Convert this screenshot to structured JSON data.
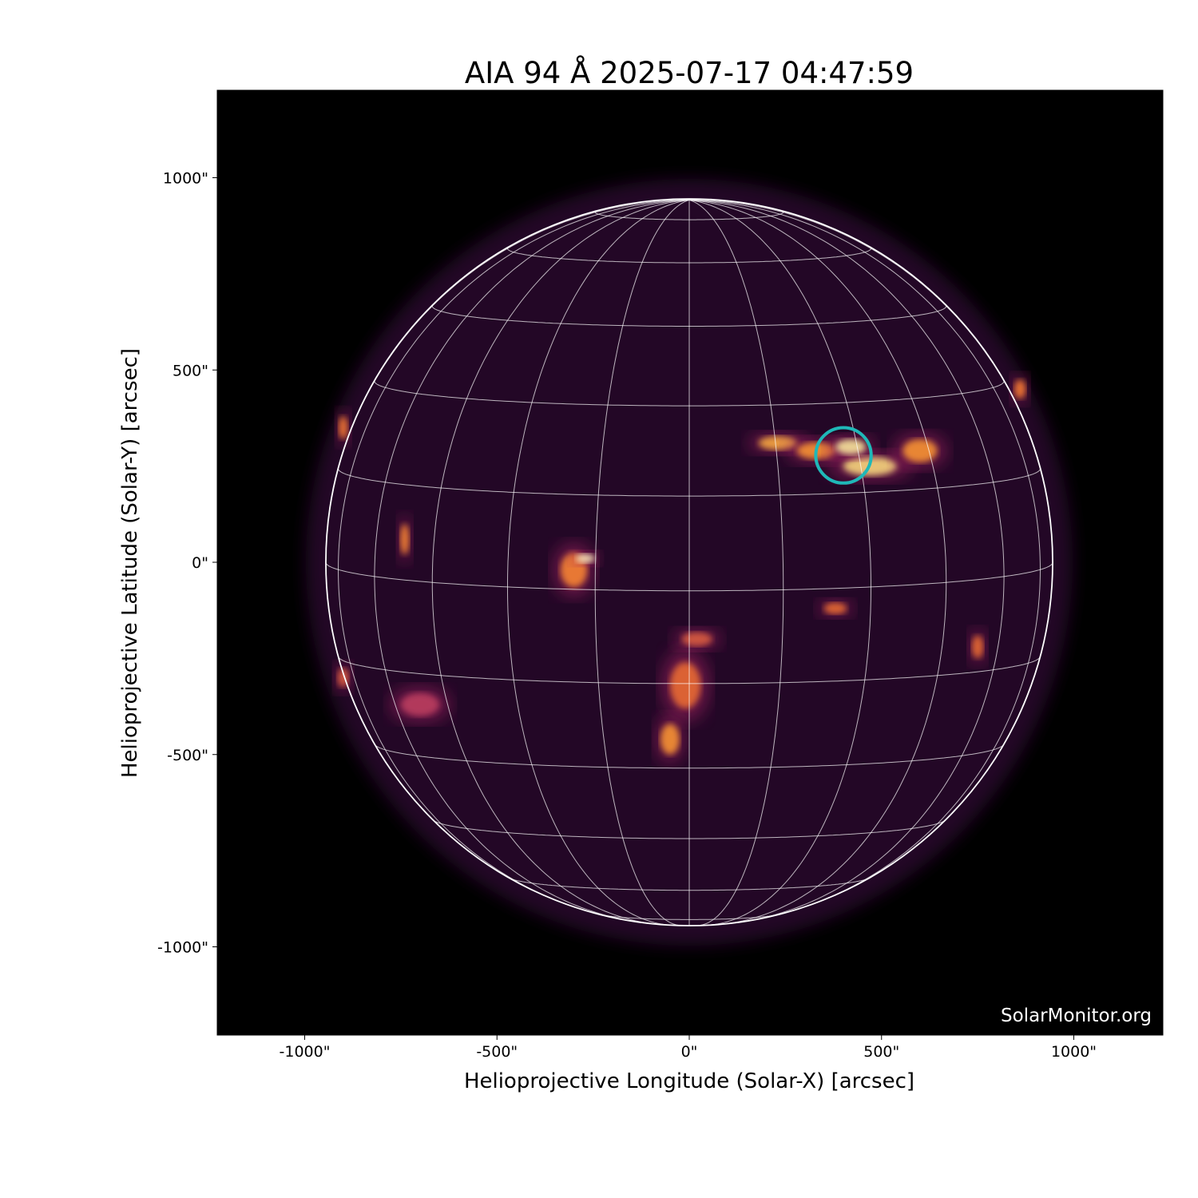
{
  "title": "AIA 94 Å 2025-07-17 04:47:59",
  "watermark": "SolarMonitor.org",
  "axes": {
    "xlabel": "Helioprojective Longitude (Solar-X) [arcsec]",
    "ylabel": "Helioprojective Latitude (Solar-Y) [arcsec]",
    "xticks": [
      {
        "v": -1000,
        "label": "-1000\""
      },
      {
        "v": -500,
        "label": "-500\""
      },
      {
        "v": 0,
        "label": "0\""
      },
      {
        "v": 500,
        "label": "500\""
      },
      {
        "v": 1000,
        "label": "1000\""
      }
    ],
    "yticks": [
      {
        "v": 1000,
        "label": "1000\""
      },
      {
        "v": 500,
        "label": "500\""
      },
      {
        "v": 0,
        "label": "0\""
      },
      {
        "v": -500,
        "label": "-500\""
      },
      {
        "v": -1000,
        "label": "-1000\""
      }
    ],
    "xlim": [
      -1230,
      1230
    ],
    "ylim": [
      -1230,
      1230
    ]
  },
  "sun": {
    "radius_arcsec": 945,
    "b0_deg": 4.5,
    "grid_spacing_deg": 15
  },
  "marker": {
    "x_arcsec": 401,
    "y_arcsec": 278,
    "radius_arcsec": 72,
    "color": "#1fb8b8"
  },
  "colors": {
    "background": "#000000",
    "grid": "#ffffff",
    "colormap": "inferno-like"
  }
}
